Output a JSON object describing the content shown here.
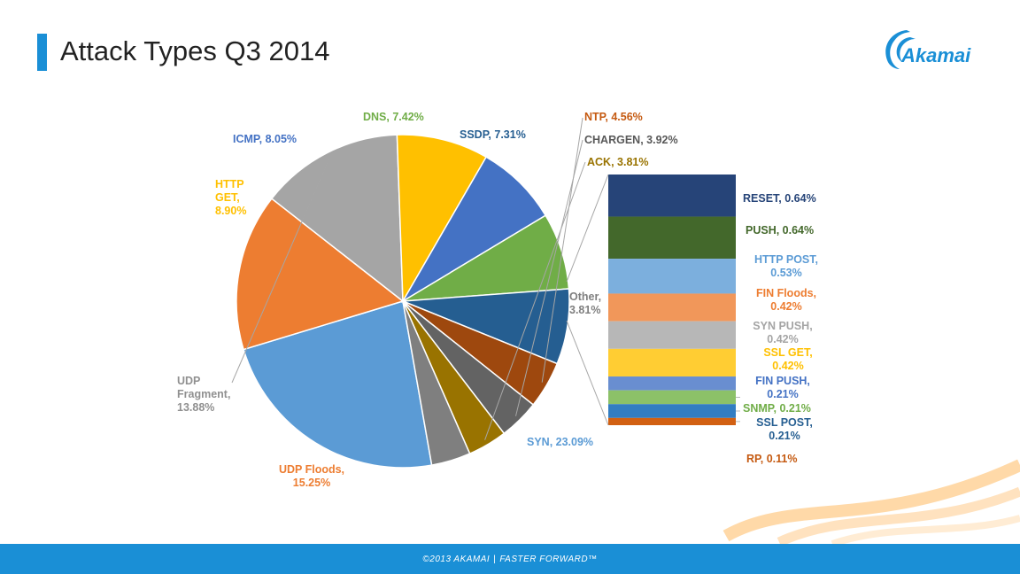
{
  "header": {
    "title": "Attack Types Q3 2014"
  },
  "logo": {
    "text": "Akamai"
  },
  "footer": {
    "copyright": "©2013 AKAMAI",
    "separator": "|",
    "slogan": "FASTER FORWARD™"
  },
  "colors": {
    "accent": "#1a8fd6",
    "logo": "#1a8fd6"
  },
  "chart_data": {
    "type": "pie",
    "title": "Attack Types Q3 2014",
    "unit": "%",
    "slices": [
      {
        "name": "SYN",
        "value": 23.09,
        "label_lines": [
          "SYN, 23.09%"
        ],
        "color": "#5b9bd5",
        "label_color": "#5b9bd5"
      },
      {
        "name": "UDP Floods",
        "value": 15.25,
        "label_lines": [
          "UDP Floods,",
          "15.25%"
        ],
        "color": "#ed7d31",
        "label_color": "#ed7d31"
      },
      {
        "name": "UDP Fragment",
        "value": 13.88,
        "label_lines": [
          "UDP",
          "Fragment,",
          "13.88%"
        ],
        "color": "#a5a5a5",
        "label_color": "#909090"
      },
      {
        "name": "HTTP GET",
        "value": 8.9,
        "label_lines": [
          "HTTP",
          "GET,",
          "8.90%"
        ],
        "color": "#ffc000",
        "label_color": "#ffc000"
      },
      {
        "name": "ICMP",
        "value": 8.05,
        "label_lines": [
          "ICMP, 8.05%"
        ],
        "color": "#4472c4",
        "label_color": "#4472c4"
      },
      {
        "name": "DNS",
        "value": 7.42,
        "label_lines": [
          "DNS, 7.42%"
        ],
        "color": "#70ad47",
        "label_color": "#70ad47"
      },
      {
        "name": "SSDP",
        "value": 7.31,
        "label_lines": [
          "SSDP, 7.31%"
        ],
        "color": "#255e91",
        "label_color": "#255e91"
      },
      {
        "name": "NTP",
        "value": 4.56,
        "label_lines": [
          "NTP, 4.56%"
        ],
        "color": "#9e480e",
        "label_color": "#c55a11"
      },
      {
        "name": "CHARGEN",
        "value": 3.92,
        "label_lines": [
          "CHARGEN, 3.92%"
        ],
        "color": "#636363",
        "label_color": "#595959"
      },
      {
        "name": "ACK",
        "value": 3.81,
        "label_lines": [
          "ACK, 3.81%"
        ],
        "color": "#997300",
        "label_color": "#997300"
      },
      {
        "name": "Other",
        "value": 3.81,
        "label_lines": [
          "Other,",
          "3.81%"
        ],
        "color": "#7f7f7f",
        "label_color": "#7f7f7f"
      }
    ],
    "other_breakdown": [
      {
        "name": "RESET",
        "value": 0.64,
        "label_lines": [
          "RESET, 0.64%"
        ],
        "color": "#264478",
        "label_color": "#264478"
      },
      {
        "name": "PUSH",
        "value": 0.64,
        "label_lines": [
          "PUSH, 0.64%"
        ],
        "color": "#43682b",
        "label_color": "#43682b"
      },
      {
        "name": "HTTP POST",
        "value": 0.53,
        "label_lines": [
          "HTTP POST,",
          "0.53%"
        ],
        "color": "#7cafdd",
        "label_color": "#5b9bd5"
      },
      {
        "name": "FIN Floods",
        "value": 0.42,
        "label_lines": [
          "FIN Floods,",
          "0.42%"
        ],
        "color": "#f1975a",
        "label_color": "#ed7d31"
      },
      {
        "name": "SYN PUSH",
        "value": 0.42,
        "label_lines": [
          "SYN PUSH,",
          "0.42%"
        ],
        "color": "#b7b7b7",
        "label_color": "#a5a5a5"
      },
      {
        "name": "SSL GET",
        "value": 0.42,
        "label_lines": [
          "SSL GET,",
          "0.42%"
        ],
        "color": "#ffcd33",
        "label_color": "#ffc000"
      },
      {
        "name": "FIN PUSH",
        "value": 0.21,
        "label_lines": [
          "FIN PUSH,",
          "0.21%"
        ],
        "color": "#698ed0",
        "label_color": "#4472c4"
      },
      {
        "name": "SNMP",
        "value": 0.21,
        "label_lines": [
          "SNMP, 0.21%"
        ],
        "color": "#8cc168",
        "label_color": "#70ad47"
      },
      {
        "name": "SSL POST",
        "value": 0.21,
        "label_lines": [
          "SSL POST,",
          "0.21%"
        ],
        "color": "#327dc2",
        "label_color": "#255e91"
      },
      {
        "name": "RP",
        "value": 0.11,
        "label_lines": [
          "RP, 0.11%"
        ],
        "color": "#d26012",
        "label_color": "#c55a11"
      }
    ]
  }
}
